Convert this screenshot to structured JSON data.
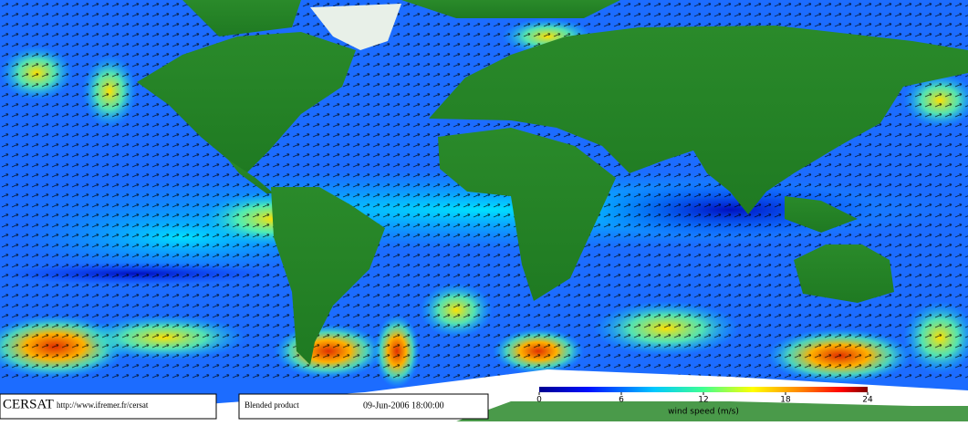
{
  "logo": {
    "name": "CERSAT",
    "url": "http://www.ifremer.fr/cersat"
  },
  "product": "Blended product",
  "timestamp": "09-Jun-2006 18:00:00",
  "colorbar": {
    "label": "wind speed (m/s)",
    "lim": [
      0,
      24
    ],
    "ticks": [
      0,
      6,
      12,
      18,
      24
    ]
  }
}
